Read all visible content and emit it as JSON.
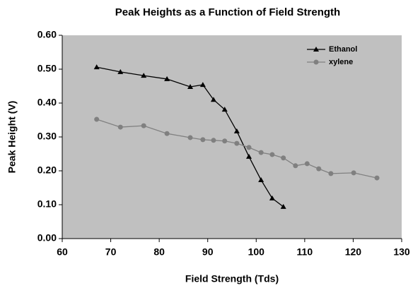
{
  "chart_data": {
    "type": "line",
    "title": "Peak Heights as a Function of Field Strength",
    "x_label": "Field Strength (Tds)",
    "y_label": "Peak Height (V)",
    "xlim": [
      60,
      130
    ],
    "xticks": [
      60,
      70,
      80,
      90,
      100,
      110,
      120,
      130
    ],
    "ylim": [
      0,
      0.6
    ],
    "yticks": [
      {
        "value": 0,
        "label": "0.00"
      },
      {
        "value": 0.1,
        "label": "0.10"
      },
      {
        "value": 0.2,
        "label": "0.20"
      },
      {
        "value": 0.3,
        "label": "0.30"
      },
      {
        "value": 0.4,
        "label": "0.40"
      },
      {
        "value": 0.5,
        "label": "0.50"
      },
      {
        "value": 0.6,
        "label": "0.60"
      }
    ],
    "plot_background": "#c0c0c0",
    "legend": "upper right",
    "series": [
      {
        "name": "Ethanol",
        "color": "#000000",
        "marker": "triangle",
        "x": [
          67.1,
          72.0,
          76.8,
          81.6,
          86.4,
          89.0,
          91.2,
          93.5,
          96.0,
          98.5,
          101.0,
          103.3,
          105.6
        ],
        "values": [
          0.506,
          0.492,
          0.481,
          0.471,
          0.448,
          0.454,
          0.41,
          0.381,
          0.317,
          0.242,
          0.173,
          0.119,
          0.094
        ]
      },
      {
        "name": "xylene",
        "color": "#808080",
        "marker": "circle",
        "x": [
          67.1,
          72.0,
          76.8,
          81.6,
          86.4,
          89.0,
          91.2,
          93.5,
          96.0,
          98.5,
          101.0,
          103.3,
          105.6,
          108.1,
          110.5,
          112.9,
          115.4,
          120.1,
          124.9
        ],
        "values": [
          0.352,
          0.329,
          0.333,
          0.31,
          0.298,
          0.292,
          0.29,
          0.288,
          0.281,
          0.269,
          0.254,
          0.248,
          0.238,
          0.215,
          0.221,
          0.206,
          0.192,
          0.194,
          0.179
        ]
      }
    ]
  }
}
